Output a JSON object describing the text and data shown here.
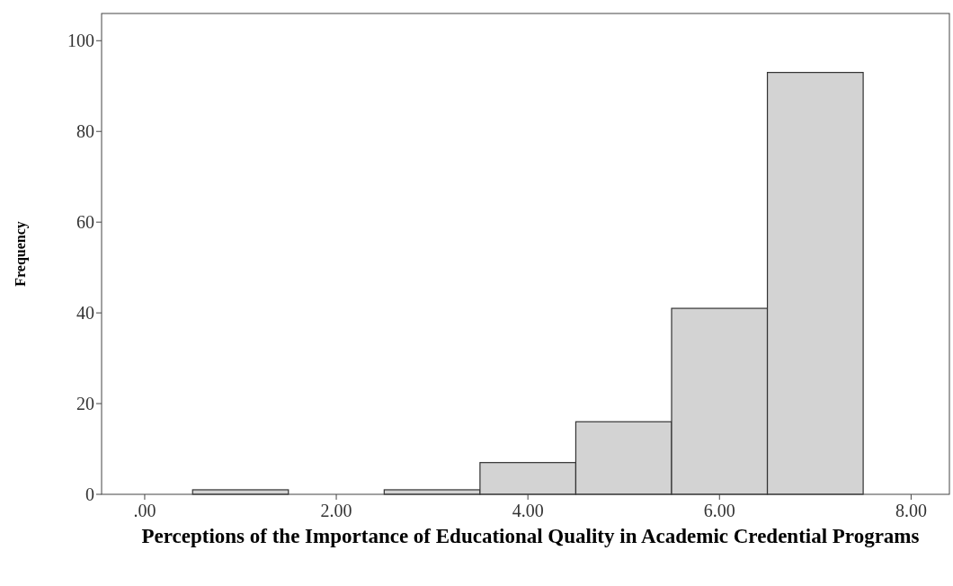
{
  "chart_data": {
    "type": "histogram",
    "xlabel": "Perceptions of the Importance of Educational Quality in Academic Credential Programs",
    "ylabel": "Frequency",
    "bins": [
      0.5,
      1.5,
      2.5,
      3.5,
      4.5,
      5.5,
      6.5,
      7.5
    ],
    "values": [
      1,
      0,
      1,
      7,
      16,
      41,
      93
    ],
    "color": "#d3d3d3",
    "xlim": [
      -0.45,
      8.4
    ],
    "xticks": [
      {
        "value": 0,
        "label": ".00"
      },
      {
        "value": 2,
        "label": "2.00"
      },
      {
        "value": 4,
        "label": "4.00"
      },
      {
        "value": 6,
        "label": "6.00"
      },
      {
        "value": 8,
        "label": "8.00"
      }
    ],
    "ylim": [
      0,
      106
    ],
    "yticks": [
      0,
      20,
      40,
      60,
      80,
      100
    ],
    "grid": false
  }
}
